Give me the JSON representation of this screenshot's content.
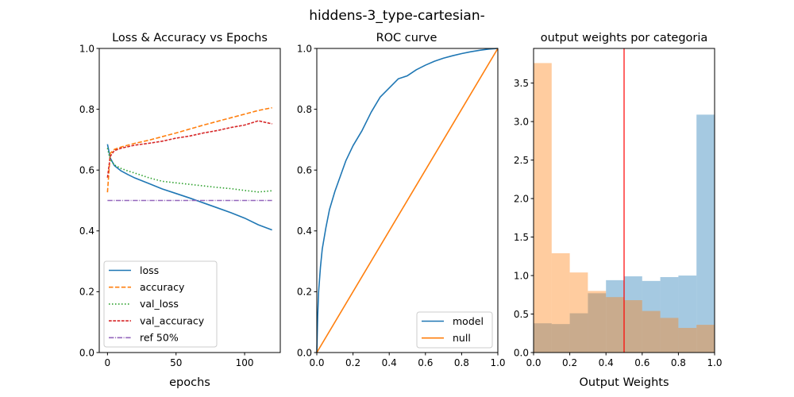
{
  "suptitle": "hiddens-3_type-cartesian-",
  "chart_data": [
    {
      "type": "line",
      "title": "Loss & Accuracy vs Epochs",
      "xlabel": "epochs",
      "ylabel": "",
      "xlim": [
        -6,
        126
      ],
      "ylim": [
        0.0,
        1.0
      ],
      "xticks": [
        0,
        50,
        100
      ],
      "yticks": [
        0.0,
        0.2,
        0.4,
        0.6,
        0.8,
        1.0
      ],
      "legend_position": "lower-left",
      "series": [
        {
          "name": "loss",
          "color": "#1f77b4",
          "dash": "solid",
          "x": [
            0,
            2,
            5,
            10,
            15,
            20,
            30,
            40,
            50,
            60,
            70,
            80,
            90,
            100,
            110,
            120
          ],
          "y": [
            0.685,
            0.64,
            0.615,
            0.597,
            0.585,
            0.574,
            0.556,
            0.538,
            0.523,
            0.508,
            0.492,
            0.476,
            0.46,
            0.442,
            0.42,
            0.403
          ]
        },
        {
          "name": "accuracy",
          "color": "#ff7f0e",
          "dash": "dashed",
          "x": [
            0,
            2,
            5,
            10,
            20,
            30,
            40,
            50,
            60,
            70,
            80,
            90,
            100,
            110,
            120
          ],
          "y": [
            0.527,
            0.655,
            0.668,
            0.676,
            0.688,
            0.698,
            0.71,
            0.722,
            0.735,
            0.748,
            0.76,
            0.772,
            0.784,
            0.796,
            0.805
          ]
        },
        {
          "name": "val_loss",
          "color": "#2ca02c",
          "dash": "dotted",
          "x": [
            0,
            2,
            5,
            10,
            15,
            20,
            30,
            40,
            50,
            60,
            70,
            80,
            90,
            100,
            110,
            120
          ],
          "y": [
            0.672,
            0.635,
            0.617,
            0.605,
            0.597,
            0.59,
            0.575,
            0.563,
            0.558,
            0.553,
            0.548,
            0.543,
            0.539,
            0.533,
            0.528,
            0.532
          ]
        },
        {
          "name": "val_accuracy",
          "color": "#d62728",
          "dash": "densely-dashed",
          "x": [
            0,
            2,
            5,
            10,
            20,
            30,
            40,
            50,
            60,
            70,
            80,
            90,
            100,
            110,
            120
          ],
          "y": [
            0.575,
            0.645,
            0.664,
            0.672,
            0.682,
            0.688,
            0.695,
            0.705,
            0.712,
            0.722,
            0.73,
            0.74,
            0.748,
            0.762,
            0.752
          ]
        },
        {
          "name": "ref 50%",
          "color": "#9467bd",
          "dash": "dash-dot",
          "x": [
            0,
            120
          ],
          "y": [
            0.5,
            0.5
          ]
        }
      ]
    },
    {
      "type": "line",
      "title": "ROC curve",
      "xlabel": "",
      "ylabel": "",
      "xlim": [
        0.0,
        1.0
      ],
      "ylim": [
        0.0,
        1.0
      ],
      "xticks": [
        0.0,
        0.2,
        0.4,
        0.6,
        0.8,
        1.0
      ],
      "yticks": [
        0.0,
        0.2,
        0.4,
        0.6,
        0.8,
        1.0
      ],
      "legend_position": "lower-right",
      "series": [
        {
          "name": "model",
          "color": "#1f77b4",
          "dash": "solid",
          "x": [
            0,
            0.005,
            0.01,
            0.02,
            0.03,
            0.05,
            0.07,
            0.1,
            0.13,
            0.16,
            0.2,
            0.25,
            0.3,
            0.35,
            0.4,
            0.45,
            0.5,
            0.55,
            0.6,
            0.65,
            0.7,
            0.75,
            0.8,
            0.85,
            0.9,
            0.95,
            1.0
          ],
          "y": [
            0,
            0.12,
            0.2,
            0.28,
            0.34,
            0.41,
            0.47,
            0.53,
            0.58,
            0.63,
            0.68,
            0.73,
            0.79,
            0.84,
            0.87,
            0.9,
            0.91,
            0.93,
            0.945,
            0.958,
            0.968,
            0.976,
            0.983,
            0.989,
            0.994,
            0.998,
            1.0
          ]
        },
        {
          "name": "null",
          "color": "#ff7f0e",
          "dash": "solid",
          "x": [
            0,
            1
          ],
          "y": [
            0,
            1
          ]
        }
      ]
    },
    {
      "type": "histogram",
      "title": "output weights por categoria",
      "xlabel": "Output Weights",
      "ylabel": "",
      "xlim": [
        0.0,
        1.0
      ],
      "ylim": [
        0.0,
        3.95
      ],
      "xticks": [
        0.0,
        0.2,
        0.4,
        0.6,
        0.8,
        1.0
      ],
      "yticks": [
        0.0,
        0.5,
        1.0,
        1.5,
        2.0,
        2.5,
        3.0,
        3.5
      ],
      "bin_edges": [
        0.0,
        0.1,
        0.2,
        0.3,
        0.4,
        0.5,
        0.6,
        0.7,
        0.8,
        0.9,
        1.0
      ],
      "series": [
        {
          "color": "#1f77b4",
          "opacity": 0.4,
          "values": [
            0.38,
            0.37,
            0.51,
            0.77,
            0.94,
            0.99,
            0.93,
            0.98,
            1.0,
            3.09
          ]
        },
        {
          "color": "#ff7f0e",
          "opacity": 0.4,
          "values": [
            3.76,
            1.29,
            1.04,
            0.8,
            0.72,
            0.68,
            0.54,
            0.45,
            0.32,
            0.36
          ]
        }
      ],
      "vline": {
        "x": 0.5,
        "color": "#ff0000"
      }
    }
  ]
}
